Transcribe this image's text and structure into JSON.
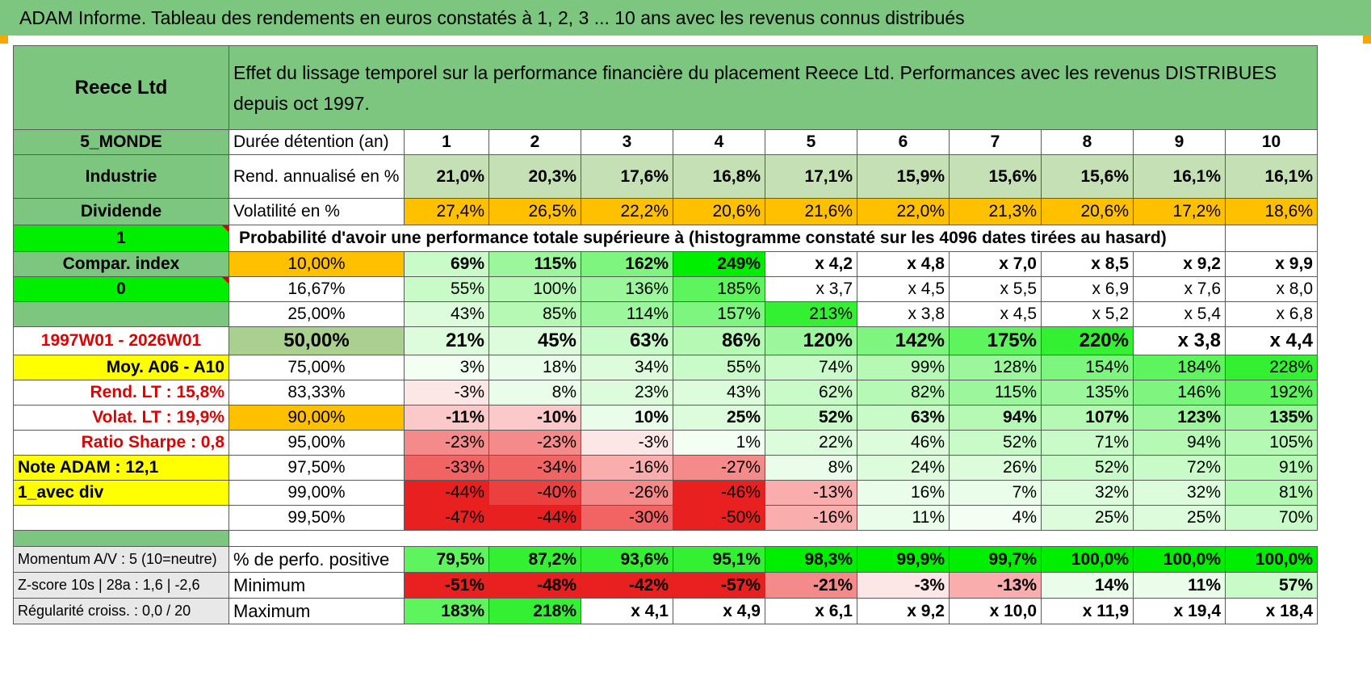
{
  "title": "ADAM Informe. Tableau des rendements en euros constatés à 1, 2, 3 ... 10 ans avec les revenus connus distribués",
  "header": {
    "name": "Reece Ltd",
    "subtitle": "Effet du lissage temporel sur la performance financière du placement Reece Ltd. Performances avec les revenus DISTRIBUES depuis oct 1997."
  },
  "duration_row": {
    "side": "5_MONDE",
    "label": "Durée détention (an)",
    "years": [
      "1",
      "2",
      "3",
      "4",
      "5",
      "6",
      "7",
      "8",
      "9",
      "10"
    ]
  },
  "rend_row": {
    "side": "Industrie",
    "label": "Rend. annualisé en %",
    "values": [
      "21,0%",
      "20,3%",
      "17,6%",
      "16,8%",
      "17,1%",
      "15,9%",
      "15,6%",
      "15,6%",
      "16,1%",
      "16,1%"
    ]
  },
  "vol_row": {
    "side": "Dividende",
    "label": "Volatilité en %",
    "values": [
      "27,4%",
      "26,5%",
      "22,2%",
      "20,6%",
      "21,6%",
      "22,0%",
      "21,3%",
      "20,6%",
      "17,2%",
      "18,6%"
    ]
  },
  "prob_row": {
    "side": "1",
    "label": "Probabilité d'avoir une performance totale supérieure à (histogramme constaté sur les 4096 dates tirées au hasard)"
  },
  "prob_table": [
    {
      "side": "Compar. index",
      "pct": "10,00%",
      "values": [
        "69%",
        "115%",
        "162%",
        "249%",
        "x 4,2",
        "x 4,8",
        "x 7,0",
        "x 8,5",
        "x 9,2",
        "x 9,9"
      ]
    },
    {
      "side": "0",
      "pct": "16,67%",
      "values": [
        "55%",
        "100%",
        "136%",
        "185%",
        "x 3,7",
        "x 4,5",
        "x 5,5",
        "x 6,9",
        "x 7,6",
        "x 8,0"
      ]
    },
    {
      "side": "",
      "pct": "25,00%",
      "values": [
        "43%",
        "85%",
        "114%",
        "157%",
        "213%",
        "x 3,8",
        "x 4,5",
        "x 5,2",
        "x 5,4",
        "x 6,8"
      ]
    },
    {
      "side": "1997W01 - 2026W01",
      "pct": "50,00%",
      "values": [
        "21%",
        "45%",
        "63%",
        "86%",
        "120%",
        "142%",
        "175%",
        "220%",
        "x 3,8",
        "x 4,4"
      ]
    },
    {
      "side": "Moy. A06 - A10",
      "pct": "75,00%",
      "values": [
        "3%",
        "18%",
        "34%",
        "55%",
        "74%",
        "99%",
        "128%",
        "154%",
        "184%",
        "228%"
      ]
    },
    {
      "side": "Rend. LT :    15,8%",
      "pct": "83,33%",
      "values": [
        "-3%",
        "8%",
        "23%",
        "43%",
        "62%",
        "82%",
        "115%",
        "135%",
        "146%",
        "192%"
      ]
    },
    {
      "side": "Volat. LT :    19,9%",
      "pct": "90,00%",
      "values": [
        "-11%",
        "-10%",
        "10%",
        "25%",
        "52%",
        "63%",
        "94%",
        "107%",
        "123%",
        "135%"
      ]
    },
    {
      "side": "Ratio Sharpe :     0,8",
      "pct": "95,00%",
      "values": [
        "-23%",
        "-23%",
        "-3%",
        "1%",
        "22%",
        "46%",
        "52%",
        "71%",
        "94%",
        "105%"
      ]
    },
    {
      "side": "Note ADAM : 12,1",
      "pct": "97,50%",
      "values": [
        "-33%",
        "-34%",
        "-16%",
        "-27%",
        "8%",
        "24%",
        "26%",
        "52%",
        "72%",
        "91%"
      ]
    },
    {
      "side": "1_avec div",
      "pct": "99,00%",
      "values": [
        "-44%",
        "-40%",
        "-26%",
        "-46%",
        "-13%",
        "16%",
        "7%",
        "32%",
        "32%",
        "81%"
      ]
    },
    {
      "side": "",
      "pct": "99,50%",
      "values": [
        "-47%",
        "-44%",
        "-30%",
        "-50%",
        "-16%",
        "11%",
        "4%",
        "25%",
        "25%",
        "70%"
      ]
    }
  ],
  "bottom": [
    {
      "side": "Momentum A/V : 5 (10=neutre)",
      "label": "% de perfo. positive",
      "values": [
        "79,5%",
        "87,2%",
        "93,6%",
        "95,1%",
        "98,3%",
        "99,9%",
        "99,7%",
        "100,0%",
        "100,0%",
        "100,0%"
      ]
    },
    {
      "side": "Z-score 10s | 28a : 1,6 | -2,6",
      "label": "Minimum",
      "values": [
        "-51%",
        "-48%",
        "-42%",
        "-57%",
        "-21%",
        "-3%",
        "-13%",
        "14%",
        "11%",
        "57%"
      ]
    },
    {
      "side": "Régularité croiss. : 0,0 / 20",
      "label": "Maximum",
      "values": [
        "183%",
        "218%",
        "x 4,1",
        "x 4,9",
        "x 6,1",
        "x 9,2",
        "x 10,0",
        "x 11,9",
        "x 19,4",
        "x 18,4"
      ]
    }
  ],
  "colors": {
    "header_green": "#7dc67f",
    "accent_lime": "#00ee00",
    "accent_orange": "#ffc000",
    "accent_yellow": "#ffff00",
    "label_red": "#e00000"
  }
}
